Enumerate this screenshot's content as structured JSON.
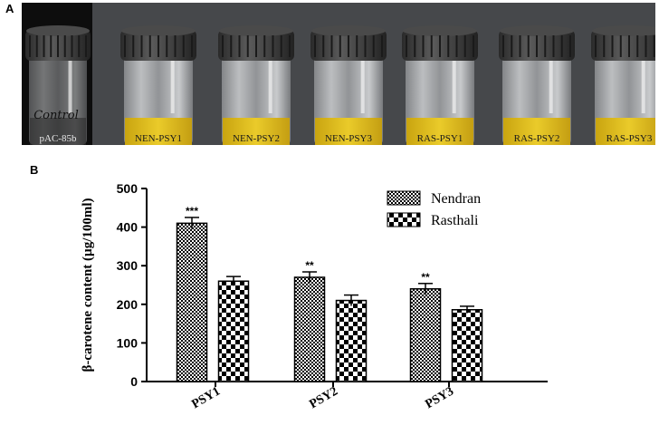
{
  "panel_a": {
    "letter": "A",
    "vials": [
      {
        "label": "pAC-85b",
        "liquid": "clear",
        "handwriting": "Control"
      },
      {
        "label": "NEN-PSY1",
        "liquid": "yellow"
      },
      {
        "label": "NEN-PSY2",
        "liquid": "yellow"
      },
      {
        "label": "NEN-PSY3",
        "liquid": "yellow"
      },
      {
        "label": "RAS-PSY1",
        "liquid": "yellow"
      },
      {
        "label": "RAS-PSY2",
        "liquid": "yellow"
      },
      {
        "label": "RAS-PSY3",
        "liquid": "yellow"
      }
    ]
  },
  "panel_b": {
    "letter": "B"
  },
  "colors": {
    "photo_bg": "#46484b",
    "control_bg": "#0d0d0d",
    "yellow_liquid": "#e6c21a",
    "cap": "#3a3a3a"
  },
  "chart_data": {
    "type": "bar",
    "title": "",
    "categories": [
      "PSY1",
      "PSY2",
      "PSY3"
    ],
    "series": [
      {
        "name": "Nendran",
        "pattern": "fine-checker",
        "values": [
          410,
          270,
          240
        ],
        "errors": [
          15,
          14,
          14
        ],
        "significance": [
          "***",
          "**",
          "**"
        ]
      },
      {
        "name": "Rasthali",
        "pattern": "coarse-checker",
        "values": [
          260,
          210,
          186
        ],
        "errors": [
          12,
          14,
          9
        ],
        "significance": [
          "",
          "",
          ""
        ]
      }
    ],
    "xlabel": "",
    "ylabel": "β-carotene content (µg/100ml)",
    "ylim": [
      0,
      500
    ],
    "yticks": [
      0,
      100,
      200,
      300,
      400,
      500
    ],
    "grid": false,
    "legend_position": "top-right"
  }
}
